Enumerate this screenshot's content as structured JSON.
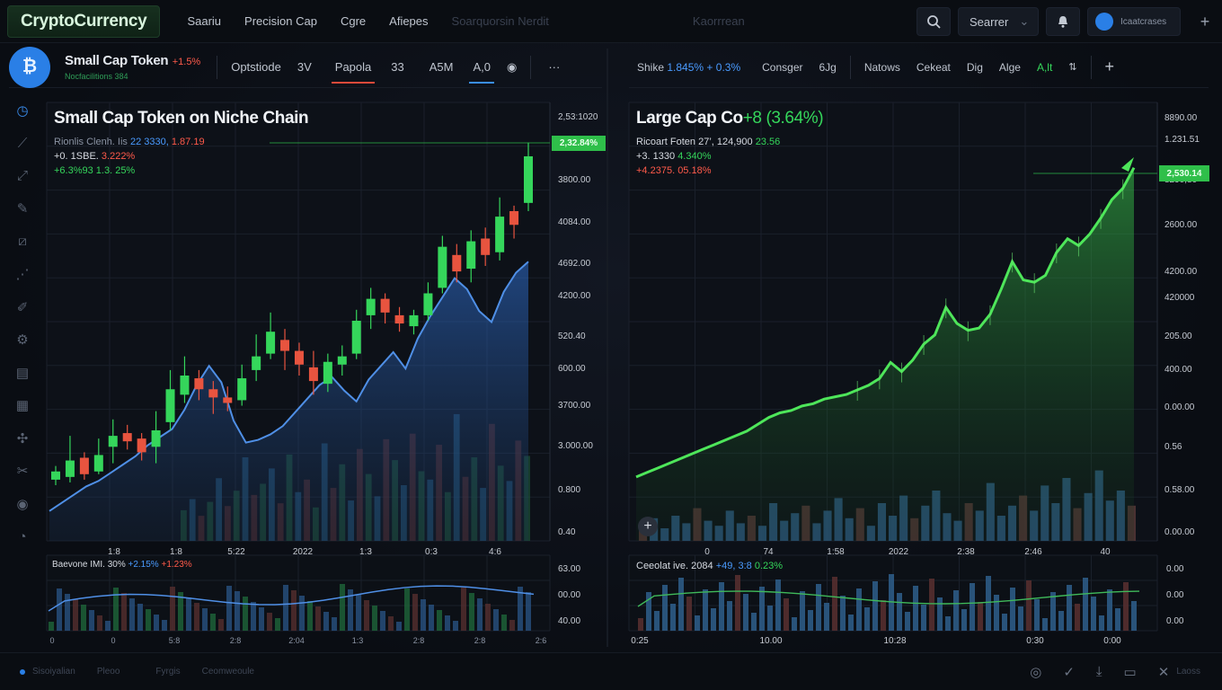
{
  "nav": {
    "brand": "CryptoCurrency",
    "items": [
      "Saariu",
      "Precision Cap",
      "Cgre",
      "Afiepes"
    ],
    "dim_item": "Soarquorsin Nerdit",
    "dim_item2": "Kaorrrean",
    "search_label": "Searrer",
    "account_label": "Icaatcrases"
  },
  "left_panel": {
    "header_name": "Small Cap Token",
    "header_change": "+1.5%",
    "header_sub": "Nocfacilitions 384",
    "tabs": [
      "Optstiode",
      "3V",
      "Papola",
      "33",
      "A5M",
      "A,0"
    ],
    "chart_title": "Small Cap Token on Niche Chain",
    "legend": [
      {
        "a": "Rionlis Clenh. Iis",
        "b": "22 3330,",
        "c": "1.87.19"
      },
      {
        "a": "+0. 1SBE.",
        "b": "3.222%"
      },
      {
        "a": "+6.3%93",
        "b": "1.3. 25%"
      }
    ],
    "price_badge": "2,32.84%",
    "y_ticks": [
      "2,53:1020",
      "2,24.1I",
      "3800.00",
      "4084.00",
      "4692.00",
      "4200.00",
      "520.40",
      "600.00",
      "3700.00",
      "3.000.00",
      "0.800",
      "0.40"
    ],
    "x_ticks": [
      "1:8",
      "1:8",
      "5:22",
      "2022",
      "1:3",
      "0:3",
      "4:6"
    ],
    "vol_legend": {
      "a": "Baevone IMI. 30%",
      "b": "+2.15%",
      "c": "+1.23%"
    },
    "vol_y_ticks": [
      "63.00",
      "00.00",
      "40.00"
    ],
    "vol_x_ticks": [
      "0",
      "0",
      "5:8",
      "2:8",
      "2:04",
      "1:3",
      "2:8",
      "2:8",
      "2:6"
    ],
    "chart_data": {
      "type": "candlestick",
      "candles": [
        {
          "o": 2,
          "c": 5,
          "h": 7,
          "l": 0
        },
        {
          "o": 3,
          "c": 9,
          "h": 18,
          "l": 1
        },
        {
          "o": 10,
          "c": 4,
          "h": 12,
          "l": 2
        },
        {
          "o": 5,
          "c": 11,
          "h": 17,
          "l": 4
        },
        {
          "o": 14,
          "c": 18,
          "h": 24,
          "l": 8
        },
        {
          "o": 19,
          "c": 16,
          "h": 22,
          "l": 13
        },
        {
          "o": 17,
          "c": 12,
          "h": 19,
          "l": 9
        },
        {
          "o": 14,
          "c": 20,
          "h": 27,
          "l": 8
        },
        {
          "o": 23,
          "c": 35,
          "h": 42,
          "l": 20
        },
        {
          "o": 33,
          "c": 40,
          "h": 47,
          "l": 30
        },
        {
          "o": 39,
          "c": 35,
          "h": 42,
          "l": 31
        },
        {
          "o": 35,
          "c": 32,
          "h": 38,
          "l": 26
        },
        {
          "o": 32,
          "c": 30,
          "h": 36,
          "l": 27
        },
        {
          "o": 31,
          "c": 39,
          "h": 44,
          "l": 29
        },
        {
          "o": 42,
          "c": 47,
          "h": 55,
          "l": 38
        },
        {
          "o": 48,
          "c": 56,
          "h": 63,
          "l": 46
        },
        {
          "o": 53,
          "c": 49,
          "h": 57,
          "l": 42
        },
        {
          "o": 49,
          "c": 44,
          "h": 52,
          "l": 40
        },
        {
          "o": 43,
          "c": 38,
          "h": 49,
          "l": 33
        },
        {
          "o": 37,
          "c": 45,
          "h": 48,
          "l": 34
        },
        {
          "o": 44,
          "c": 47,
          "h": 51,
          "l": 40
        },
        {
          "o": 48,
          "c": 60,
          "h": 64,
          "l": 46
        },
        {
          "o": 62,
          "c": 68,
          "h": 72,
          "l": 57
        },
        {
          "o": 68,
          "c": 63,
          "h": 70,
          "l": 59
        },
        {
          "o": 62,
          "c": 59,
          "h": 65,
          "l": 56
        },
        {
          "o": 58,
          "c": 62,
          "h": 64,
          "l": 55
        },
        {
          "o": 62,
          "c": 70,
          "h": 74,
          "l": 60
        },
        {
          "o": 72,
          "c": 87,
          "h": 91,
          "l": 70
        },
        {
          "o": 84,
          "c": 78,
          "h": 88,
          "l": 74
        },
        {
          "o": 79,
          "c": 89,
          "h": 93,
          "l": 74
        },
        {
          "o": 90,
          "c": 84,
          "h": 94,
          "l": 80
        },
        {
          "o": 85,
          "c": 98,
          "h": 105,
          "l": 82
        },
        {
          "o": 100,
          "c": 95,
          "h": 102,
          "l": 90
        },
        {
          "o": 103,
          "c": 120,
          "h": 125,
          "l": 100
        }
      ],
      "trend": [
        3,
        6,
        9,
        12,
        14,
        17,
        20,
        23,
        27,
        30,
        33,
        40,
        49,
        56,
        50,
        36,
        28,
        29,
        31,
        34,
        39,
        44,
        49,
        52,
        47,
        43,
        51,
        56,
        61,
        55,
        66,
        74,
        81,
        88,
        84,
        76,
        72,
        83,
        90,
        94
      ],
      "volume": [
        22,
        30,
        18,
        28,
        45,
        25,
        36,
        60,
        33,
        41,
        52,
        27,
        62,
        35,
        44,
        24,
        70,
        38,
        55,
        29,
        66,
        48,
        32,
        73,
        58,
        40,
        77,
        50,
        44,
        69,
        35,
        91,
        46,
        60,
        38,
        84,
        54,
        43,
        72,
        61
      ]
    }
  },
  "right_panel": {
    "tabs": [
      {
        "label": "Shike",
        "extra": "1.845%",
        "extra2": "+ 0.3%"
      },
      {
        "label": "Consger"
      },
      {
        "label": "6Jg"
      },
      {
        "label": "Natows"
      },
      {
        "label": "Cekeat"
      },
      {
        "label": "Dig"
      },
      {
        "label": "Alge"
      },
      {
        "label": "A,lt"
      }
    ],
    "chart_title": "Large Cap Co",
    "chart_title_change": "+8 (3.64%)",
    "legend": [
      {
        "a": "Ricoart Foten 27’,",
        "b": "124,900",
        "c": "23.56"
      },
      {
        "a": "+3. 1330",
        "b": "4.340%"
      },
      {
        "a": "+4.2375.",
        "b": "05.18%"
      }
    ],
    "price_badge": "2,530.14",
    "y_ticks": [
      "8890.00",
      "1.231.51",
      "8290,80",
      "2600.00",
      "4200.00",
      "420000",
      "205.00",
      "400.00",
      "0.00.00",
      "0.56",
      "0.58.00",
      "0.00.00"
    ],
    "x_ticks": [
      "0",
      "74",
      "1:58",
      "2022",
      "2:38",
      "2:46",
      "40"
    ],
    "vol_legend": {
      "a": "Ceeolat ive. 2084",
      "b": "+49, 3:8",
      "c": "0.23%"
    },
    "vol_y_ticks": [
      "0.00",
      "0.00",
      "0.00"
    ],
    "vol_x_ticks": [
      "0:25",
      "10.00",
      "10:28",
      "0:30",
      "0:00"
    ],
    "chart_data": {
      "type": "area",
      "values": [
        2,
        4,
        6,
        8,
        10,
        12,
        14,
        16,
        18,
        20,
        22,
        25,
        28,
        30,
        31,
        33,
        34,
        36,
        37,
        38,
        40,
        42,
        45,
        52,
        48,
        53,
        60,
        64,
        76,
        69,
        66,
        67,
        73,
        84,
        96,
        88,
        87,
        90,
        100,
        106,
        103,
        108,
        115,
        123,
        128,
        137
      ],
      "volume": [
        12,
        18,
        10,
        20,
        14,
        26,
        16,
        12,
        24,
        14,
        20,
        12,
        30,
        16,
        22,
        28,
        14,
        24,
        34,
        18,
        26,
        12,
        30,
        20,
        36,
        18,
        28,
        40,
        22,
        16,
        30,
        24,
        46,
        20,
        28,
        36,
        24,
        44,
        30,
        50,
        26,
        38,
        56,
        32,
        40,
        28
      ]
    }
  },
  "colors": {
    "up": "#35d65b",
    "down": "#e8543f",
    "blue": "#3a8ef0",
    "green_area": "#3bd14c"
  },
  "footer": {
    "items": [
      "Sisoiyalian",
      "Pleoo",
      "Fyrgis",
      "Ceomweoule"
    ],
    "right_label": "Laoss"
  }
}
